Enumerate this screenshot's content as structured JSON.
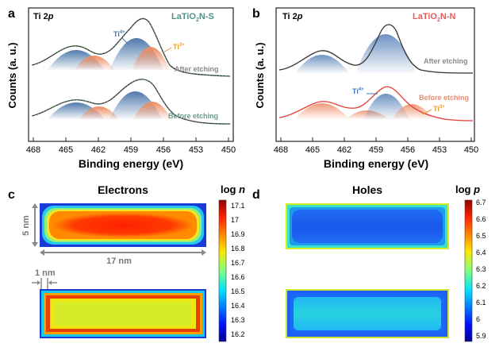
{
  "panels": {
    "a": {
      "letter": "a",
      "element": "Ti 2",
      "element_italic": "p",
      "sample_prefix": "LaTiO",
      "sample_sub": "2",
      "sample_suffix": "N-S",
      "label_top": "After etching",
      "label_bottom": "Before etching",
      "ti4_base": "Ti",
      "ti4_sup": "4+",
      "ti3_base": "Ti",
      "ti3_sup": "3+",
      "ylabel": "Counts (a. u.)",
      "xlabel": "Binding energy (eV)",
      "xticks": [
        "468",
        "465",
        "462",
        "459",
        "456",
        "453",
        "450"
      ]
    },
    "b": {
      "letter": "b",
      "element": "Ti 2",
      "element_italic": "p",
      "sample_prefix": "LaTiO",
      "sample_sub": "2",
      "sample_suffix": "N-N",
      "label_top": "After etching",
      "label_bottom": "Before etching",
      "ti4_base": "Ti",
      "ti4_sup": "4+",
      "ti3_base": "Ti",
      "ti3_sup": "3+",
      "ylabel": "Counts (a. u.)",
      "xlabel": "Binding energy (eV)",
      "xticks": [
        "468",
        "465",
        "462",
        "459",
        "456",
        "453",
        "450"
      ]
    },
    "c": {
      "letter": "c",
      "title": "Electrons",
      "colorbar_label_prefix": "log ",
      "colorbar_label_var": "n",
      "colorbar_ticks": [
        "17.1",
        "17",
        "16.9",
        "16.8",
        "16.7",
        "16.6",
        "16.5",
        "16.4",
        "16.3",
        "16.2"
      ],
      "dim_height": "5 nm",
      "dim_width": "17 nm",
      "dim_shell": "1 nm"
    },
    "d": {
      "letter": "d",
      "title": "Holes",
      "colorbar_label_prefix": "log ",
      "colorbar_label_var": "p",
      "colorbar_ticks": [
        "6.7",
        "6.6",
        "6.5",
        "6.4",
        "6.3",
        "6.2",
        "6.1",
        "6",
        "5.9"
      ]
    }
  },
  "colors": {
    "ti4_fill": "#5b86b8",
    "ti3_fill": "#ec8c62",
    "fit_gray": "#3a3a3a",
    "fit_red": "#e23b35",
    "sample_s": "#4f8f88",
    "sample_n": "#e85a5a",
    "label_gray": "#8a8a8a",
    "label_salmon": "#ef8a72",
    "ti4_label": "#3d78b9",
    "ti3_label": "#e89a38"
  },
  "chart_data": [
    {
      "type": "line",
      "panel": "a",
      "xlabel": "Binding energy (eV)",
      "ylabel": "Counts (a. u.)",
      "xlim": [
        468,
        450
      ],
      "series": [
        {
          "name": "After etching",
          "x": [
            468,
            466,
            465,
            464,
            463,
            462,
            461,
            460,
            459,
            458,
            457,
            456,
            455,
            454,
            452,
            450
          ],
          "y": [
            0.3,
            0.45,
            0.62,
            0.72,
            0.64,
            0.56,
            0.6,
            0.7,
            0.88,
            1.0,
            0.9,
            0.62,
            0.38,
            0.28,
            0.24,
            0.23
          ]
        },
        {
          "name": "Before etching",
          "x": [
            468,
            466,
            465,
            464,
            463,
            462,
            461,
            460,
            459,
            458,
            457,
            456,
            455,
            454,
            452,
            450
          ],
          "y": [
            0.3,
            0.45,
            0.6,
            0.66,
            0.6,
            0.58,
            0.62,
            0.72,
            0.88,
            0.96,
            0.88,
            0.62,
            0.4,
            0.3,
            0.26,
            0.25
          ]
        }
      ]
    },
    {
      "type": "line",
      "panel": "b",
      "xlabel": "Binding energy (eV)",
      "ylabel": "Counts (a. u.)",
      "xlim": [
        468,
        450
      ],
      "series": [
        {
          "name": "After etching",
          "x": [
            468,
            466,
            465,
            464,
            463,
            462,
            461,
            460,
            459,
            458,
            457,
            456,
            455,
            454,
            452,
            450
          ],
          "y": [
            0.28,
            0.45,
            0.66,
            0.72,
            0.6,
            0.44,
            0.42,
            0.6,
            0.92,
            1.0,
            0.8,
            0.46,
            0.28,
            0.22,
            0.2,
            0.2
          ]
        },
        {
          "name": "Before etching",
          "x": [
            468,
            466,
            465,
            464,
            463,
            462,
            461,
            460,
            459,
            458,
            457,
            456,
            455,
            454,
            452,
            450
          ],
          "y": [
            0.3,
            0.42,
            0.55,
            0.58,
            0.52,
            0.48,
            0.5,
            0.62,
            0.82,
            0.9,
            0.78,
            0.6,
            0.44,
            0.34,
            0.28,
            0.27
          ]
        }
      ]
    }
  ]
}
